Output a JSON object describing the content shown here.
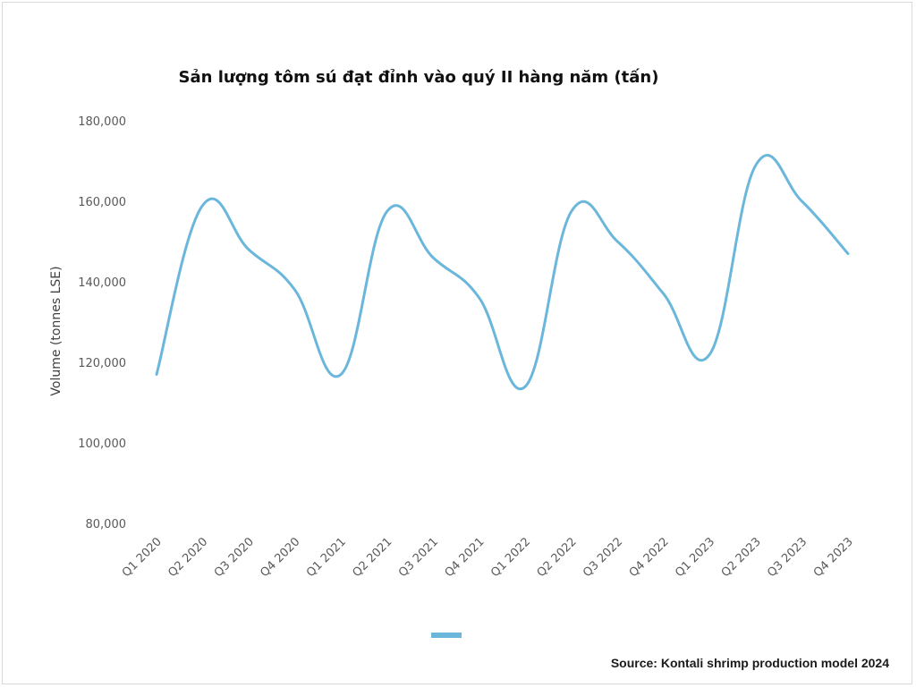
{
  "title": "Sản lượng tôm sú đạt đỉnh vào quý II hàng năm (tấn)",
  "source": "Source: Kontali shrimp production model 2024",
  "colors": {
    "series": "#6bb7dc",
    "text": "#595959"
  },
  "chart_data": {
    "type": "line",
    "title": "Sản lượng tôm sú đạt đỉnh vào quý II hàng năm (tấn)",
    "xlabel": "",
    "ylabel": "Volume (tonnes LSE)",
    "ylim": [
      80000,
      180000
    ],
    "yticks": [
      80000,
      100000,
      120000,
      140000,
      160000,
      180000
    ],
    "ytick_labels": [
      "80,000",
      "100,000",
      "120,000",
      "140,000",
      "160,000",
      "180,000"
    ],
    "grid": false,
    "legend": "bottom-center",
    "categories": [
      "Q1 2020",
      "Q2 2020",
      "Q3 2020",
      "Q4 2020",
      "Q1 2021",
      "Q2 2021",
      "Q3 2021",
      "Q4 2021",
      "Q1 2022",
      "Q2 2022",
      "Q3 2022",
      "Q4 2022",
      "Q1 2023",
      "Q2 2023",
      "Q3 2023",
      "Q4 2023"
    ],
    "series": [
      {
        "name": "",
        "values": [
          117000,
          159000,
          148000,
          138000,
          117000,
          157500,
          146000,
          136000,
          114000,
          157500,
          150000,
          137000,
          122000,
          169000,
          160000,
          147000
        ]
      }
    ]
  }
}
